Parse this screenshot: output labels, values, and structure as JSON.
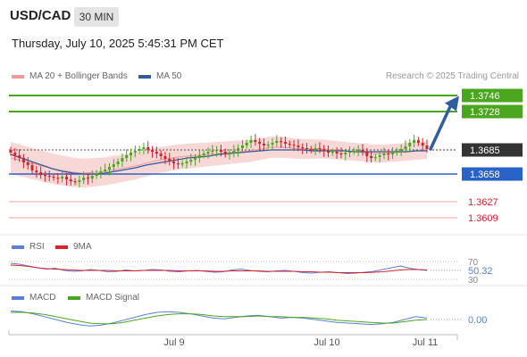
{
  "header": {
    "symbol": "USD/CAD",
    "timeframe": "30 MIN",
    "datetime": "Thursday, July 10, 2025 5:45:31 PM CET"
  },
  "legend": {
    "ma20_bb": "MA 20 + Bollinger Bands",
    "ma50": "MA 50",
    "credit": "Research © 2025 Trading Central",
    "rsi": "RSI",
    "rsi_ma": "9MA",
    "macd": "MACD",
    "macd_signal": "MACD Signal"
  },
  "colors": {
    "bull": "#4aa61e",
    "bear": "#d9212c",
    "bb_fill": "#f7d0d0",
    "ma20": "#ef9a9a",
    "ma50": "#2f5d9e",
    "green_level": "#4aa61e",
    "blue_level": "#2a63c7",
    "red_level": "#f1a3a3",
    "current": "#333333",
    "rsi": "#5b7fd6",
    "rsi_ma": "#d9212c",
    "macd": "#5b7fd6",
    "macd_signal": "#4aa61e"
  },
  "chart_data": [
    {
      "type": "candlestick",
      "title": "",
      "ylim": [
        1.3595,
        1.3755
      ],
      "x_ticks": [
        "Jul 9",
        "Jul 10",
        "Jul 11"
      ],
      "levels": [
        {
          "value": 1.3746,
          "label": "1.3746",
          "kind": "resistance"
        },
        {
          "value": 1.3728,
          "label": "1.3728",
          "kind": "resistance"
        },
        {
          "value": 1.3685,
          "label": "1.3685",
          "kind": "current"
        },
        {
          "value": 1.3658,
          "label": "1.3658",
          "kind": "pivot"
        },
        {
          "value": 1.3627,
          "label": "1.3627",
          "kind": "support"
        },
        {
          "value": 1.3609,
          "label": "1.3609",
          "kind": "support"
        }
      ],
      "closes": [
        1.3682,
        1.3679,
        1.3676,
        1.3671,
        1.3668,
        1.3662,
        1.366,
        1.3657,
        1.3656,
        1.3655,
        1.3654,
        1.3653,
        1.3655,
        1.3652,
        1.365,
        1.3649,
        1.3651,
        1.3654,
        1.3653,
        1.3656,
        1.3659,
        1.3661,
        1.3663,
        1.3666,
        1.3669,
        1.3672,
        1.3676,
        1.3679,
        1.3682,
        1.3684,
        1.3686,
        1.3688,
        1.3685,
        1.3683,
        1.3681,
        1.3678,
        1.3675,
        1.3672,
        1.367,
        1.3669,
        1.367,
        1.3672,
        1.3674,
        1.3676,
        1.3679,
        1.3681,
        1.3683,
        1.3684,
        1.3685,
        1.3683,
        1.368,
        1.3681,
        1.3684,
        1.3687,
        1.369,
        1.3693,
        1.3696,
        1.3694,
        1.3692,
        1.369,
        1.3691,
        1.3693,
        1.3695,
        1.3694,
        1.3692,
        1.3691,
        1.369,
        1.3688,
        1.3687,
        1.3686,
        1.3685,
        1.3687,
        1.3686,
        1.3684,
        1.3682,
        1.3683,
        1.3681,
        1.368,
        1.3682,
        1.3683,
        1.3684,
        1.3685,
        1.3683,
        1.3678,
        1.3676,
        1.3677,
        1.3679,
        1.3681,
        1.368,
        1.3682,
        1.3684,
        1.3686,
        1.3689,
        1.3693,
        1.3696,
        1.3693,
        1.369,
        1.3686
      ],
      "price_series": [
        {
          "name": "MA 20",
          "values": [
            1.3676,
            1.3673,
            1.367,
            1.3667,
            1.3664,
            1.3662,
            1.366,
            1.3659,
            1.366,
            1.3661,
            1.3663,
            1.3665,
            1.3667,
            1.367,
            1.3673,
            1.3675,
            1.3677,
            1.3678,
            1.3679,
            1.368,
            1.3681,
            1.3682,
            1.3683,
            1.3684,
            1.3686,
            1.3688,
            1.3688,
            1.3687,
            1.3686,
            1.3686,
            1.3686,
            1.3685,
            1.3684,
            1.3683,
            1.3682,
            1.3681,
            1.3681,
            1.3682,
            1.3683,
            1.3684,
            1.3685
          ]
        },
        {
          "name": "MA 50",
          "values": [
            1.368,
            1.3676,
            1.3672,
            1.3668,
            1.3664,
            1.3661,
            1.3659,
            1.3658,
            1.3658,
            1.3659,
            1.3661,
            1.3663,
            1.3665,
            1.3668,
            1.367,
            1.3672,
            1.3674,
            1.3676,
            1.3677,
            1.3678,
            1.368,
            1.3681,
            1.3682,
            1.3683,
            1.3684,
            1.3685,
            1.3685,
            1.3685,
            1.3685,
            1.3684,
            1.3684,
            1.3684,
            1.3684,
            1.3683,
            1.3683,
            1.3683,
            1.3683,
            1.3683,
            1.3683,
            1.3684,
            1.3684
          ]
        }
      ]
    },
    {
      "type": "line",
      "title": "RSI",
      "ylim": [
        30,
        70
      ],
      "y_ticks": [
        70,
        30
      ],
      "last_value": 50.32,
      "series": [
        {
          "name": "RSI",
          "values": [
            66,
            64,
            60,
            56,
            53,
            55,
            50,
            48,
            49,
            52,
            50,
            47,
            48,
            51,
            49,
            50,
            52,
            51,
            48,
            47,
            49,
            50,
            48,
            46,
            47,
            51,
            53,
            50,
            48,
            47,
            49,
            50,
            48,
            45,
            44,
            46,
            47,
            45,
            43,
            44,
            46,
            48,
            52,
            56,
            60,
            55,
            52,
            50
          ]
        },
        {
          "name": "9MA",
          "values": [
            62,
            61,
            59,
            56,
            54,
            53,
            52,
            51,
            50,
            50,
            50,
            50,
            49,
            49,
            49,
            50,
            50,
            50,
            50,
            49,
            49,
            49,
            49,
            48,
            48,
            49,
            49,
            49,
            49,
            48,
            48,
            48,
            48,
            47,
            47,
            46,
            46,
            45,
            45,
            45,
            45,
            46,
            47,
            49,
            51,
            52,
            52,
            51
          ]
        }
      ]
    },
    {
      "type": "line",
      "title": "MACD",
      "ylim": [
        -0.0015,
        0.0015
      ],
      "y_ticks": [
        "0.00"
      ],
      "last_value": "0.00",
      "series": [
        {
          "name": "MACD",
          "values": [
            0.0012,
            0.0011,
            0.0008,
            0.0004,
            0.0,
            -0.0004,
            -0.0007,
            -0.0009,
            -0.0008,
            -0.0005,
            -0.0001,
            0.0003,
            0.0007,
            0.001,
            0.0011,
            0.001,
            0.0008,
            0.0005,
            0.0002,
            0.0001,
            0.0003,
            0.0005,
            0.0006,
            0.0004,
            0.0002,
            0.0003,
            0.0002,
            0.0,
            -0.0002,
            -0.0004,
            -0.0005,
            -0.0006,
            -0.0007,
            -0.0006,
            -0.0004,
            0.0,
            0.0004,
            0.0002
          ]
        },
        {
          "name": "MACD Signal",
          "values": [
            0.001,
            0.001,
            0.0009,
            0.0007,
            0.0004,
            0.0001,
            -0.0002,
            -0.0005,
            -0.0006,
            -0.0006,
            -0.0004,
            -0.0001,
            0.0002,
            0.0005,
            0.0007,
            0.0008,
            0.0008,
            0.0007,
            0.0005,
            0.0004,
            0.0004,
            0.0004,
            0.0005,
            0.0004,
            0.0004,
            0.0003,
            0.0003,
            0.0002,
            0.0001,
            -0.0001,
            -0.0002,
            -0.0003,
            -0.0004,
            -0.0005,
            -0.0005,
            -0.0003,
            -0.0001,
            0.0
          ]
        }
      ]
    }
  ]
}
